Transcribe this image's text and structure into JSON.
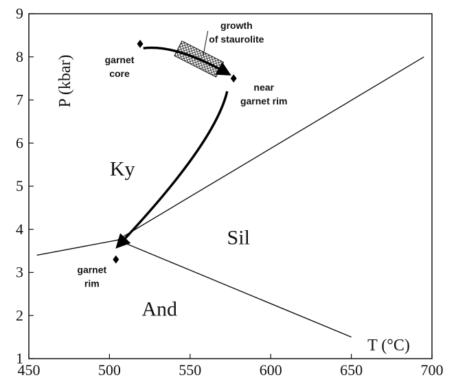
{
  "chart_data": {
    "type": "scatter",
    "xlabel": "T (°C)",
    "ylabel": "P (kbar)",
    "xlim": [
      450,
      700
    ],
    "ylim": [
      1,
      9
    ],
    "xticks": [
      "450",
      "500",
      "550",
      "600",
      "650",
      "700"
    ],
    "yticks": [
      "1",
      "2",
      "3",
      "4",
      "5",
      "6",
      "7",
      "8",
      "9"
    ],
    "grid": false,
    "phase_boundaries": [
      {
        "from": "left",
        "points": [
          [
            455,
            3.4
          ],
          [
            505,
            3.75
          ]
        ]
      },
      {
        "from": "sil-ky",
        "points": [
          [
            505,
            3.75
          ],
          [
            695,
            8.0
          ]
        ]
      },
      {
        "from": "and-sil",
        "points": [
          [
            505,
            3.75
          ],
          [
            650,
            1.5
          ]
        ]
      }
    ],
    "fields": [
      {
        "label": "Ky",
        "x": 508,
        "y": 5.25
      },
      {
        "label": "Sil",
        "x": 580,
        "y": 3.65
      },
      {
        "label": "And",
        "x": 531,
        "y": 2.0
      }
    ],
    "points": [
      {
        "name": "garnet core",
        "label_lines": [
          "garnet",
          "core"
        ],
        "x": 519,
        "y": 8.3
      },
      {
        "name": "near garnet rim",
        "label_lines": [
          "near",
          "garnet rim"
        ],
        "x": 577,
        "y": 7.5
      },
      {
        "name": "garnet rim",
        "label_lines": [
          "garnet",
          "rim"
        ],
        "x": 504,
        "y": 3.3
      }
    ],
    "staurolite_growth": {
      "label_lines": [
        "growth",
        "of staurolite"
      ],
      "x_range": [
        541,
        570
      ],
      "y_range": [
        7.6,
        8.3
      ]
    },
    "pt_path": {
      "segments": [
        {
          "from": [
            521,
            8.2
          ],
          "to": [
            574,
            7.6
          ]
        },
        {
          "from": [
            573,
            7.2
          ],
          "to": [
            505,
            3.6
          ]
        }
      ]
    }
  }
}
